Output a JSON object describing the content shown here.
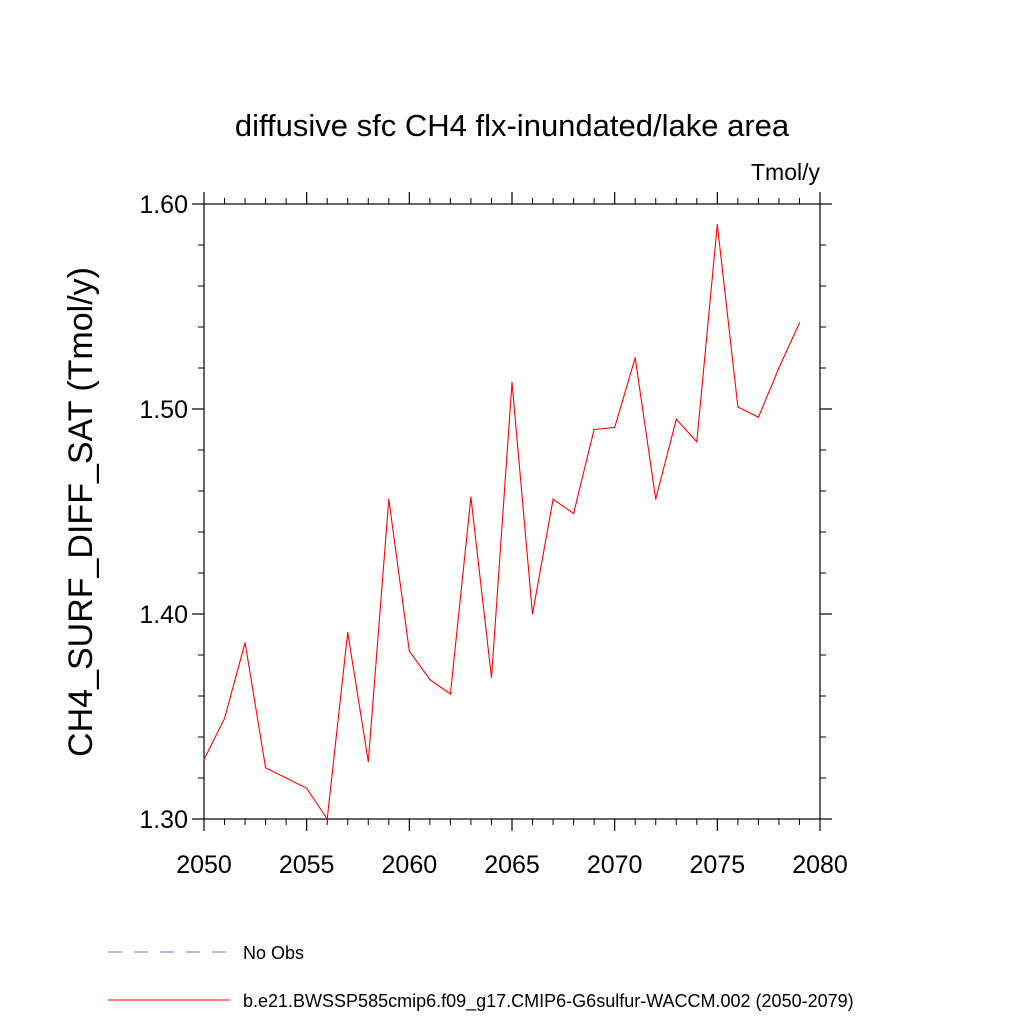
{
  "chart_data": {
    "type": "line",
    "title": "diffusive sfc CH4 flx-inundated/lake area",
    "units_label": "Tmol/y",
    "ylabel": "CH4_SURF_DIFF_SAT  (Tmol/y)",
    "xlabel": "",
    "xlim": [
      2050,
      2080
    ],
    "ylim": [
      1.3,
      1.6
    ],
    "x_ticks": [
      2050,
      2055,
      2060,
      2065,
      2070,
      2075,
      2080
    ],
    "x_tick_labels": [
      "2050",
      "2055",
      "2060",
      "2065",
      "2070",
      "2075",
      "2080"
    ],
    "y_ticks": [
      1.3,
      1.4,
      1.5,
      1.6
    ],
    "y_tick_labels": [
      "1.30",
      "1.40",
      "1.50",
      "1.60"
    ],
    "grid": false,
    "legend_position": "bottom",
    "series": [
      {
        "name": "b.e21.BWSSP585cmip6.f09_g17.CMIP6-G6sulfur-WACCM.002 (2050-2079)",
        "color": "#ff0000",
        "x": [
          2050,
          2051,
          2052,
          2053,
          2054,
          2055,
          2056,
          2057,
          2058,
          2059,
          2060,
          2061,
          2062,
          2063,
          2064,
          2065,
          2066,
          2067,
          2068,
          2069,
          2070,
          2071,
          2072,
          2073,
          2074,
          2075,
          2076,
          2077,
          2078,
          2079
        ],
        "y": [
          1.329,
          1.349,
          1.386,
          1.325,
          1.32,
          1.315,
          1.3,
          1.391,
          1.328,
          1.456,
          1.382,
          1.368,
          1.361,
          1.457,
          1.369,
          1.513,
          1.4,
          1.456,
          1.449,
          1.49,
          1.491,
          1.525,
          1.456,
          1.495,
          1.484,
          1.59,
          1.501,
          1.496,
          1.52,
          1.542
        ]
      }
    ],
    "legend": [
      {
        "label": "No Obs",
        "color": "#7a6fc4",
        "style": "dashed"
      },
      {
        "label": "b.e21.BWSSP585cmip6.f09_g17.CMIP6-G6sulfur-WACCM.002 (2050-2079)",
        "color": "#ff0000",
        "style": "solid"
      }
    ]
  }
}
